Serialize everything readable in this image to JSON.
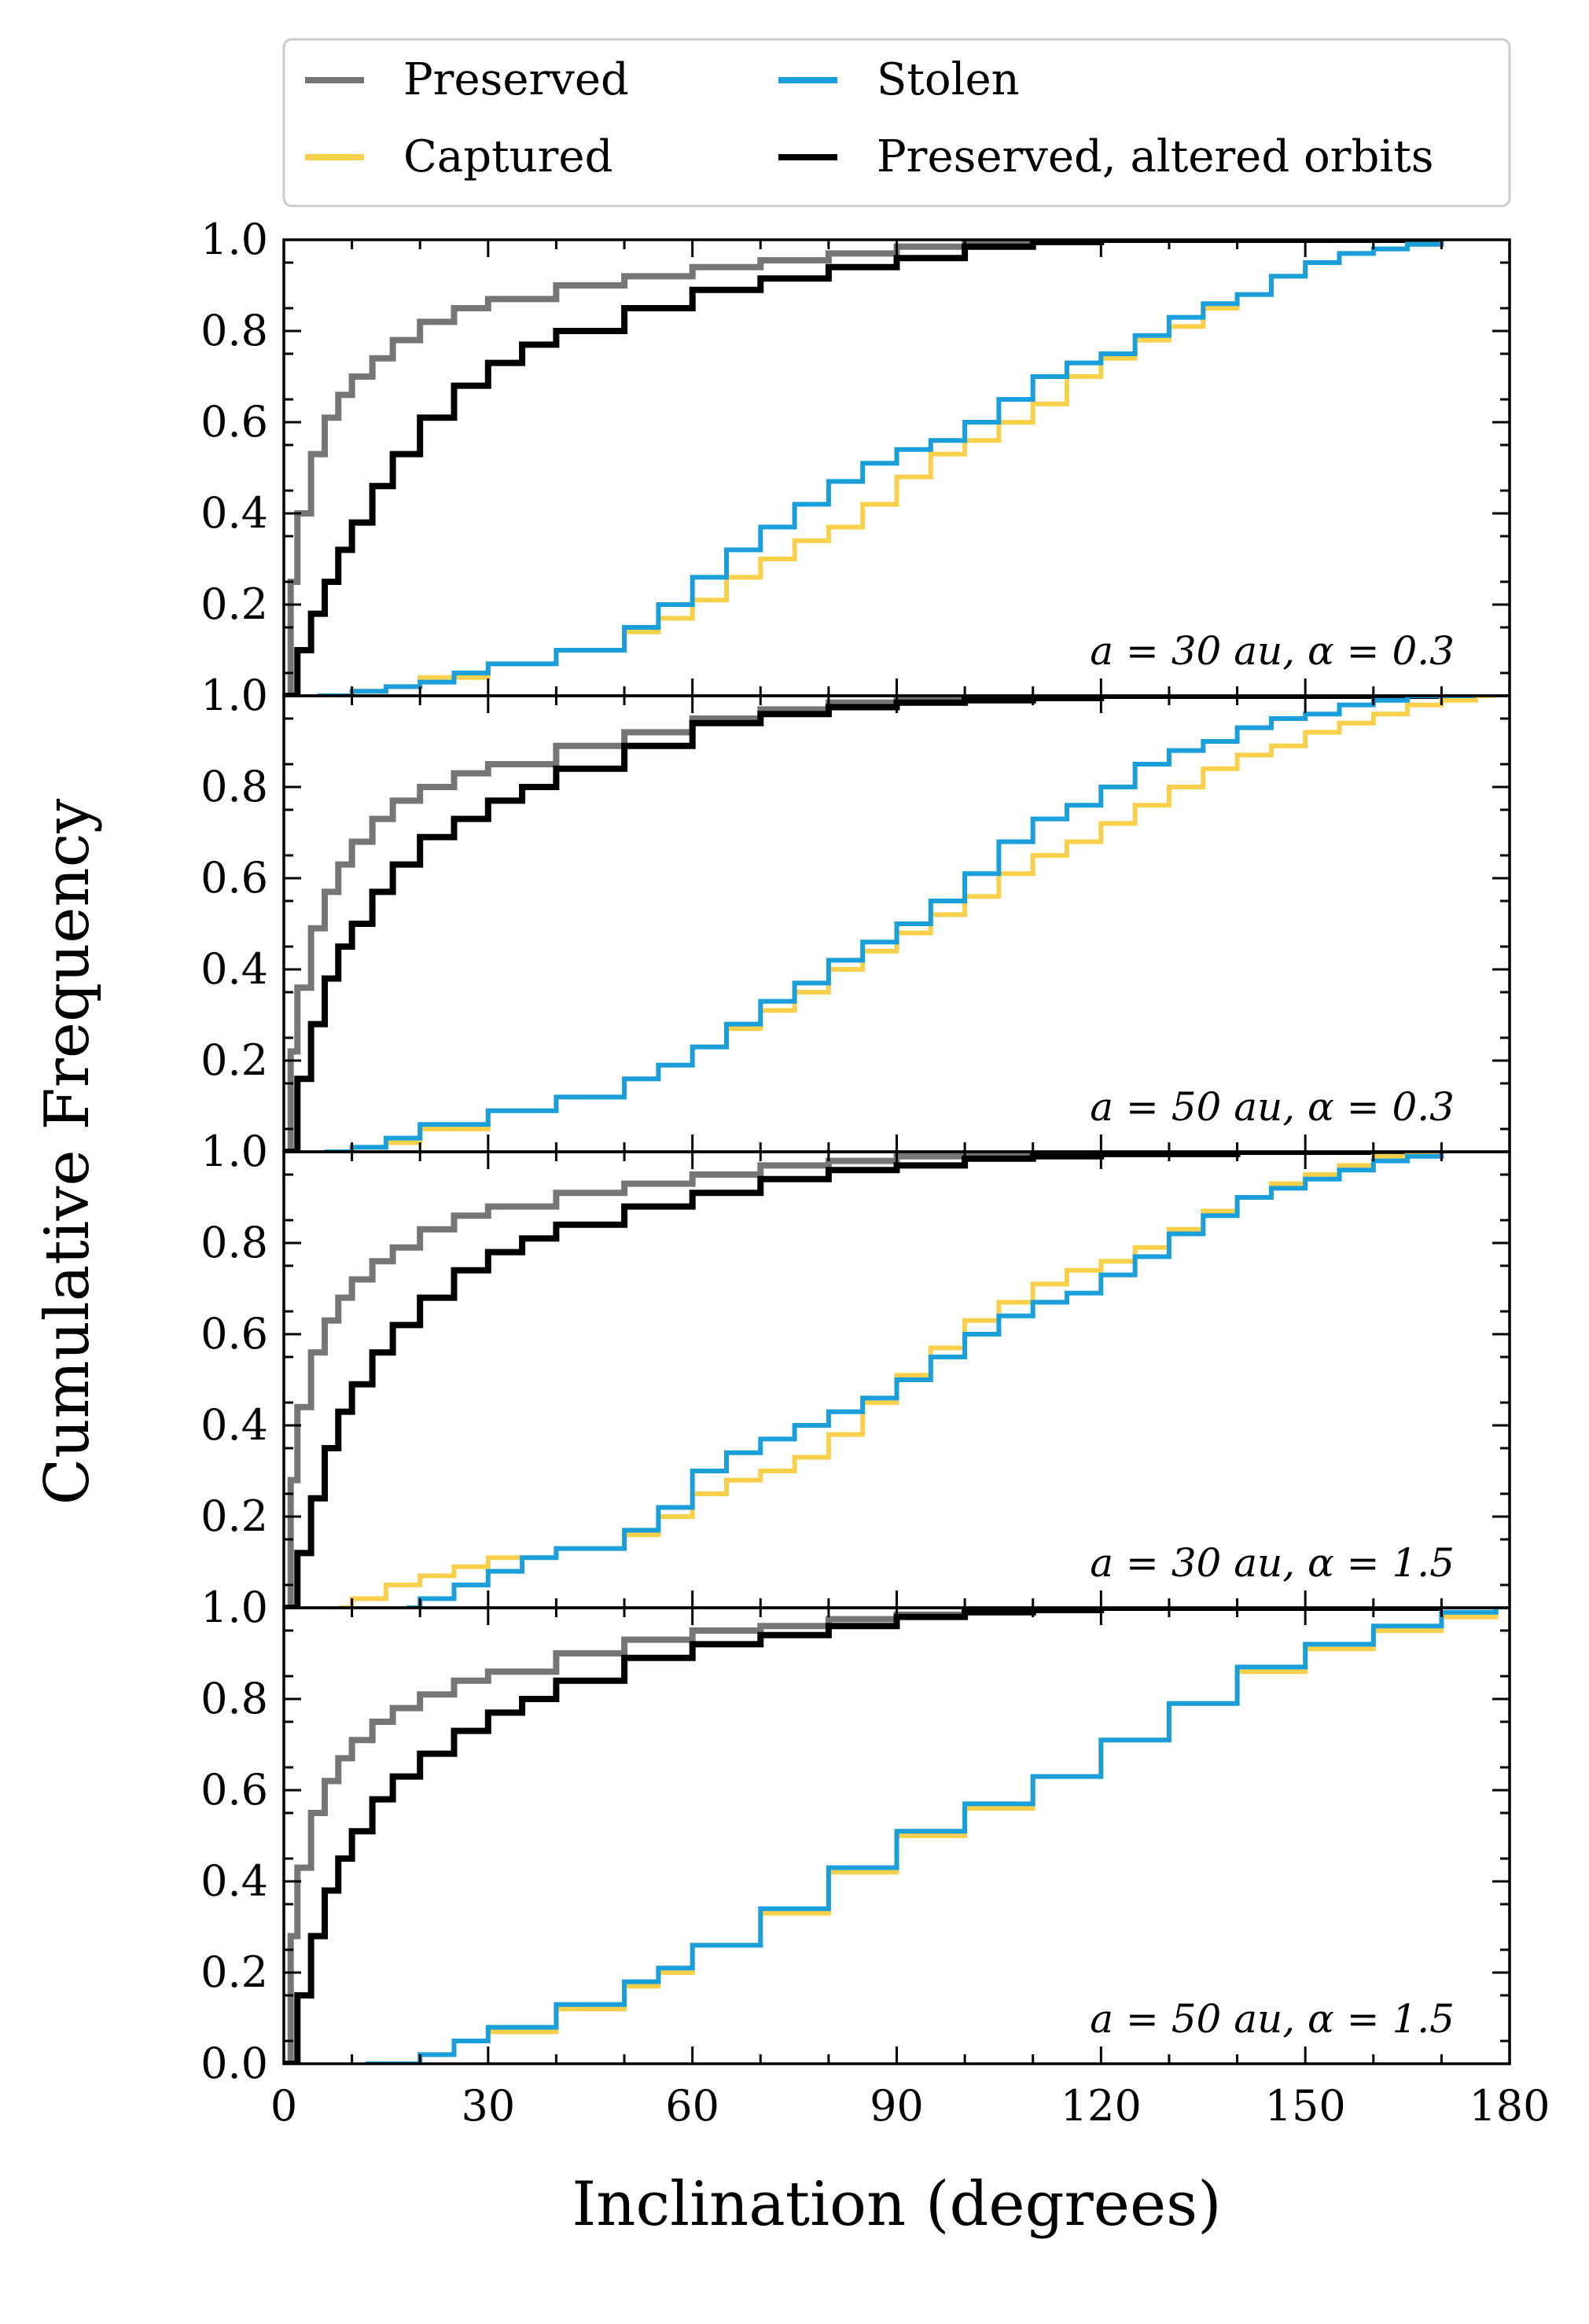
{
  "chart_data": {
    "type": "line",
    "subtype": "stacked-panels-cdf",
    "xlabel": "Inclination (degrees)",
    "ylabel": "Cumulative Frequency",
    "xlim": [
      0,
      180
    ],
    "ylim": [
      0,
      1
    ],
    "xticks": [
      0,
      30,
      60,
      90,
      120,
      150,
      180
    ],
    "yticks": [
      0.0,
      0.2,
      0.4,
      0.6,
      0.8,
      1.0
    ],
    "grid": false,
    "legend_position": "top",
    "series_styles": [
      {
        "name": "Preserved",
        "color": "#767676"
      },
      {
        "name": "Stolen",
        "color": "#1a9fdb"
      },
      {
        "name": "Captured",
        "color": "#f9d04c"
      },
      {
        "name": "Preserved, altered orbits",
        "color": "#000000"
      }
    ],
    "panels": [
      {
        "label": "a = 30 au, α = 0.3",
        "series": [
          {
            "name": "Preserved",
            "x": [
              0,
              1,
              2,
              4,
              6,
              8,
              10,
              13,
              16,
              20,
              25,
              30,
              40,
              50,
              60,
              70,
              80,
              90,
              100,
              110,
              120,
              140,
              170
            ],
            "y": [
              0,
              0.25,
              0.4,
              0.53,
              0.61,
              0.66,
              0.7,
              0.74,
              0.78,
              0.82,
              0.85,
              0.87,
              0.9,
              0.92,
              0.94,
              0.955,
              0.97,
              0.985,
              0.995,
              1.0,
              1.0,
              1.0,
              1.0
            ]
          },
          {
            "name": "Preserved, altered orbits",
            "x": [
              0,
              2,
              4,
              6,
              8,
              10,
              13,
              16,
              20,
              25,
              30,
              35,
              40,
              50,
              60,
              70,
              80,
              90,
              100,
              110,
              120,
              140,
              170
            ],
            "y": [
              0,
              0.1,
              0.18,
              0.25,
              0.32,
              0.38,
              0.46,
              0.53,
              0.61,
              0.68,
              0.73,
              0.77,
              0.8,
              0.85,
              0.89,
              0.915,
              0.94,
              0.96,
              0.985,
              0.995,
              1.0,
              1.0,
              1.0
            ]
          },
          {
            "name": "Captured",
            "x": [
              6,
              10,
              15,
              20,
              30,
              40,
              50,
              55,
              60,
              65,
              70,
              75,
              80,
              85,
              90,
              95,
              100,
              105,
              110,
              115,
              120,
              125,
              130,
              135,
              140,
              145,
              150,
              155,
              160,
              165,
              170
            ],
            "y": [
              0,
              0.01,
              0.02,
              0.04,
              0.07,
              0.1,
              0.14,
              0.17,
              0.21,
              0.26,
              0.3,
              0.34,
              0.37,
              0.42,
              0.48,
              0.53,
              0.56,
              0.6,
              0.64,
              0.7,
              0.74,
              0.78,
              0.81,
              0.85,
              0.88,
              0.92,
              0.95,
              0.97,
              0.98,
              0.99,
              1.0
            ]
          },
          {
            "name": "Stolen",
            "x": [
              5,
              10,
              15,
              20,
              25,
              30,
              40,
              50,
              55,
              60,
              65,
              70,
              75,
              80,
              85,
              90,
              95,
              100,
              105,
              110,
              115,
              120,
              125,
              130,
              135,
              140,
              145,
              150,
              155,
              160,
              165,
              170
            ],
            "y": [
              0,
              0.01,
              0.02,
              0.03,
              0.05,
              0.07,
              0.1,
              0.15,
              0.2,
              0.26,
              0.32,
              0.37,
              0.42,
              0.47,
              0.51,
              0.54,
              0.56,
              0.6,
              0.65,
              0.7,
              0.73,
              0.75,
              0.79,
              0.83,
              0.86,
              0.88,
              0.92,
              0.95,
              0.97,
              0.98,
              0.99,
              1.0
            ]
          }
        ]
      },
      {
        "label": "a = 50 au, α = 0.3",
        "series": [
          {
            "name": "Preserved",
            "x": [
              0,
              1,
              2,
              4,
              6,
              8,
              10,
              13,
              16,
              20,
              25,
              30,
              40,
              50,
              60,
              70,
              80,
              90,
              100,
              110,
              120,
              140,
              170
            ],
            "y": [
              0,
              0.22,
              0.36,
              0.49,
              0.57,
              0.63,
              0.68,
              0.73,
              0.77,
              0.8,
              0.83,
              0.85,
              0.89,
              0.92,
              0.95,
              0.97,
              0.985,
              0.995,
              1.0,
              1.0,
              1.0,
              1.0,
              1.0
            ]
          },
          {
            "name": "Preserved, altered orbits",
            "x": [
              0,
              2,
              4,
              6,
              8,
              10,
              13,
              16,
              20,
              25,
              30,
              35,
              40,
              50,
              60,
              70,
              80,
              90,
              100,
              110,
              120,
              140,
              170
            ],
            "y": [
              0,
              0.16,
              0.28,
              0.38,
              0.45,
              0.5,
              0.57,
              0.63,
              0.69,
              0.73,
              0.77,
              0.8,
              0.84,
              0.89,
              0.94,
              0.96,
              0.975,
              0.985,
              0.99,
              0.995,
              1.0,
              1.0,
              1.0
            ]
          },
          {
            "name": "Captured",
            "x": [
              6,
              10,
              15,
              20,
              30,
              40,
              50,
              55,
              60,
              65,
              70,
              75,
              80,
              85,
              90,
              95,
              100,
              105,
              110,
              115,
              120,
              125,
              130,
              135,
              140,
              145,
              150,
              155,
              160,
              165,
              170,
              175,
              178
            ],
            "y": [
              0,
              0.01,
              0.02,
              0.05,
              0.09,
              0.12,
              0.16,
              0.19,
              0.23,
              0.27,
              0.31,
              0.35,
              0.4,
              0.44,
              0.48,
              0.52,
              0.56,
              0.61,
              0.65,
              0.68,
              0.72,
              0.76,
              0.8,
              0.84,
              0.87,
              0.89,
              0.92,
              0.94,
              0.96,
              0.98,
              0.99,
              1.0,
              1.0
            ]
          },
          {
            "name": "Stolen",
            "x": [
              6,
              10,
              15,
              20,
              30,
              40,
              50,
              55,
              60,
              65,
              70,
              75,
              80,
              85,
              90,
              95,
              100,
              105,
              110,
              115,
              120,
              125,
              130,
              135,
              140,
              145,
              150,
              155,
              160,
              165,
              170,
              175
            ],
            "y": [
              0,
              0.01,
              0.03,
              0.06,
              0.09,
              0.12,
              0.16,
              0.19,
              0.23,
              0.28,
              0.33,
              0.37,
              0.42,
              0.46,
              0.5,
              0.55,
              0.61,
              0.68,
              0.73,
              0.76,
              0.8,
              0.85,
              0.88,
              0.9,
              0.93,
              0.95,
              0.96,
              0.98,
              0.99,
              1.0,
              1.0,
              1.0
            ]
          }
        ]
      },
      {
        "label": "a = 30 au, α = 1.5",
        "series": [
          {
            "name": "Preserved",
            "x": [
              0,
              1,
              2,
              4,
              6,
              8,
              10,
              13,
              16,
              20,
              25,
              30,
              40,
              50,
              60,
              70,
              80,
              90,
              100,
              110,
              120,
              140,
              170
            ],
            "y": [
              0,
              0.28,
              0.44,
              0.56,
              0.63,
              0.68,
              0.72,
              0.76,
              0.79,
              0.83,
              0.86,
              0.88,
              0.91,
              0.93,
              0.95,
              0.97,
              0.98,
              0.99,
              0.995,
              1.0,
              1.0,
              1.0,
              1.0
            ]
          },
          {
            "name": "Preserved, altered orbits",
            "x": [
              0,
              2,
              4,
              6,
              8,
              10,
              13,
              16,
              20,
              25,
              30,
              35,
              40,
              50,
              60,
              70,
              80,
              90,
              100,
              110,
              120,
              140,
              170
            ],
            "y": [
              0,
              0.12,
              0.24,
              0.35,
              0.43,
              0.49,
              0.56,
              0.62,
              0.68,
              0.74,
              0.78,
              0.81,
              0.84,
              0.88,
              0.91,
              0.94,
              0.96,
              0.97,
              0.985,
              0.99,
              0.995,
              1.0,
              1.0
            ]
          },
          {
            "name": "Captured",
            "x": [
              8,
              10,
              15,
              20,
              25,
              30,
              40,
              50,
              55,
              60,
              65,
              70,
              75,
              80,
              85,
              90,
              95,
              100,
              105,
              110,
              115,
              120,
              125,
              130,
              135,
              140,
              145,
              150,
              155,
              160,
              165,
              170
            ],
            "y": [
              0,
              0.02,
              0.05,
              0.07,
              0.09,
              0.11,
              0.13,
              0.16,
              0.2,
              0.25,
              0.28,
              0.3,
              0.33,
              0.38,
              0.45,
              0.51,
              0.57,
              0.63,
              0.67,
              0.71,
              0.74,
              0.76,
              0.79,
              0.83,
              0.87,
              0.9,
              0.93,
              0.95,
              0.97,
              0.99,
              1.0,
              1.0
            ]
          },
          {
            "name": "Stolen",
            "x": [
              18,
              20,
              25,
              30,
              35,
              40,
              50,
              55,
              60,
              65,
              70,
              75,
              80,
              85,
              90,
              95,
              100,
              105,
              110,
              115,
              120,
              125,
              130,
              135,
              140,
              145,
              150,
              155,
              160,
              165,
              170
            ],
            "y": [
              0,
              0.02,
              0.05,
              0.08,
              0.11,
              0.13,
              0.17,
              0.22,
              0.3,
              0.34,
              0.37,
              0.4,
              0.43,
              0.46,
              0.5,
              0.55,
              0.6,
              0.64,
              0.67,
              0.69,
              0.73,
              0.77,
              0.82,
              0.86,
              0.9,
              0.92,
              0.94,
              0.96,
              0.98,
              0.99,
              1.0
            ]
          }
        ]
      },
      {
        "label": "a = 50 au, α = 1.5",
        "series": [
          {
            "name": "Preserved",
            "x": [
              0,
              1,
              2,
              4,
              6,
              8,
              10,
              13,
              16,
              20,
              25,
              30,
              40,
              50,
              60,
              70,
              80,
              90,
              100,
              110,
              120,
              140,
              170
            ],
            "y": [
              0,
              0.28,
              0.43,
              0.55,
              0.62,
              0.67,
              0.71,
              0.75,
              0.78,
              0.81,
              0.84,
              0.86,
              0.9,
              0.93,
              0.95,
              0.96,
              0.975,
              0.985,
              0.995,
              1.0,
              1.0,
              1.0,
              1.0
            ]
          },
          {
            "name": "Preserved, altered orbits",
            "x": [
              0,
              2,
              4,
              6,
              8,
              10,
              13,
              16,
              20,
              25,
              30,
              35,
              40,
              50,
              60,
              70,
              80,
              90,
              100,
              110,
              120,
              140,
              170
            ],
            "y": [
              0,
              0.15,
              0.28,
              0.38,
              0.45,
              0.51,
              0.58,
              0.63,
              0.68,
              0.73,
              0.77,
              0.8,
              0.84,
              0.89,
              0.92,
              0.94,
              0.96,
              0.98,
              0.99,
              0.995,
              1.0,
              1.0,
              1.0
            ]
          },
          {
            "name": "Captured",
            "x": [
              13,
              20,
              25,
              30,
              40,
              50,
              55,
              60,
              70,
              80,
              90,
              100,
              110,
              120,
              130,
              140,
              150,
              160,
              170,
              178
            ],
            "y": [
              0,
              0.02,
              0.05,
              0.07,
              0.12,
              0.17,
              0.2,
              0.26,
              0.33,
              0.42,
              0.5,
              0.56,
              0.63,
              0.71,
              0.79,
              0.86,
              0.91,
              0.95,
              0.98,
              1.0
            ]
          },
          {
            "name": "Stolen",
            "x": [
              12,
              20,
              25,
              30,
              40,
              50,
              55,
              60,
              70,
              80,
              90,
              100,
              110,
              120,
              130,
              140,
              150,
              160,
              170,
              178
            ],
            "y": [
              0,
              0.02,
              0.05,
              0.08,
              0.13,
              0.18,
              0.21,
              0.26,
              0.34,
              0.43,
              0.51,
              0.57,
              0.63,
              0.71,
              0.79,
              0.87,
              0.92,
              0.96,
              0.99,
              1.0
            ]
          }
        ]
      }
    ]
  }
}
